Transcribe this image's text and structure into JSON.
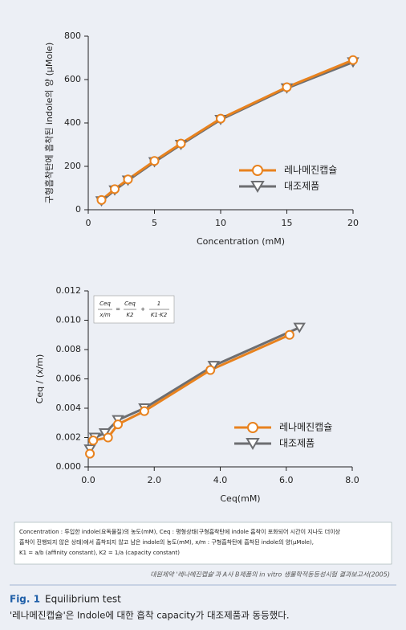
{
  "chart_data": [
    {
      "type": "line",
      "x_label": "Concentration (mM)",
      "y_label": "구형흡착탄에 흡착된 indole의 양 (μMole)",
      "x": [
        1,
        2,
        3,
        5,
        7,
        10,
        15,
        20
      ],
      "series": [
        {
          "name": "레나메진캡슐",
          "color": "#e8821e",
          "marker": "circle",
          "values": [
            45,
            95,
            140,
            225,
            305,
            420,
            565,
            690
          ]
        },
        {
          "name": "대조제품",
          "color": "#6d6e71",
          "marker": "triangle",
          "values": [
            40,
            90,
            135,
            220,
            300,
            415,
            560,
            680
          ]
        }
      ],
      "xlim": [
        0,
        20
      ],
      "xticks": [
        0,
        5,
        10,
        15,
        20
      ],
      "ylim": [
        0,
        800
      ],
      "yticks": [
        0,
        200,
        400,
        600,
        800
      ],
      "legend": "lower right"
    },
    {
      "type": "line",
      "x_label": "Ceq(mM)",
      "y_label": "Ceq / (x/m)",
      "series": [
        {
          "name": "레나메진캡슐",
          "color": "#e8821e",
          "marker": "circle",
          "x": [
            0.05,
            0.15,
            0.6,
            0.9,
            1.7,
            3.7,
            6.1
          ],
          "values": [
            0.0009,
            0.0018,
            0.002,
            0.0029,
            0.0038,
            0.0066,
            0.009
          ]
        },
        {
          "name": "대조제품",
          "color": "#6d6e71",
          "marker": "triangle",
          "x": [
            0.05,
            0.2,
            0.5,
            0.9,
            1.7,
            3.8,
            6.4
          ],
          "values": [
            0.0012,
            0.002,
            0.0023,
            0.0032,
            0.004,
            0.0069,
            0.0095
          ]
        }
      ],
      "xlim": [
        0,
        8
      ],
      "xticks": [
        {
          "value": 0,
          "label": "0.0"
        },
        {
          "value": 2,
          "label": "2.0"
        },
        {
          "value": 4,
          "label": "4.0"
        },
        {
          "value": 6,
          "label": "6.0"
        },
        {
          "value": 8,
          "label": "8.0"
        }
      ],
      "ylim": [
        0,
        0.012
      ],
      "yticks": [
        {
          "value": 0,
          "label": "0.000"
        },
        {
          "value": 0.002,
          "label": "0.002"
        },
        {
          "value": 0.004,
          "label": "0.004"
        },
        {
          "value": 0.006,
          "label": "0.006"
        },
        {
          "value": 0.008,
          "label": "0.008"
        },
        {
          "value": 0.01,
          "label": "0.010"
        },
        {
          "value": 0.012,
          "label": "0.012"
        }
      ],
      "legend": "lower right",
      "formula": {
        "lhs_num": "Ceq",
        "lhs_den": "x/m",
        "eq": "=",
        "t1_num": "Ceq",
        "t1_den": "K2",
        "plus": "+",
        "t2_num": "1",
        "t2_den": "K1·K2"
      }
    }
  ],
  "footnote": [
    "Concentration : 투입한 indole(요독물질)의 농도(mM), Ceq : 평형상태(구형흡착탄에 indole 흡착이 포화되어 시간이 지나도 더이상",
    "흡착이 진행되지 않은 상태)에서 흡착되지 않고 남은 indole의 농도(mM), x/m : 구형흡착탄에 흡착된 indole의 양(μMole),",
    "K1 = a/b (affinity constant), K2 = 1/a (capacity constant)"
  ],
  "source": "대원제약 '레나메진캡슐'과 A사 B제품의 in vitro 생물학적동등성시험 결과보고서(2005)",
  "figure": {
    "label": "Fig. 1",
    "title": "Equilibrium test",
    "caption": "'레나메진캡슐'은 Indole에 대한 흡착 capacity가 대조제품과 동등했다."
  }
}
